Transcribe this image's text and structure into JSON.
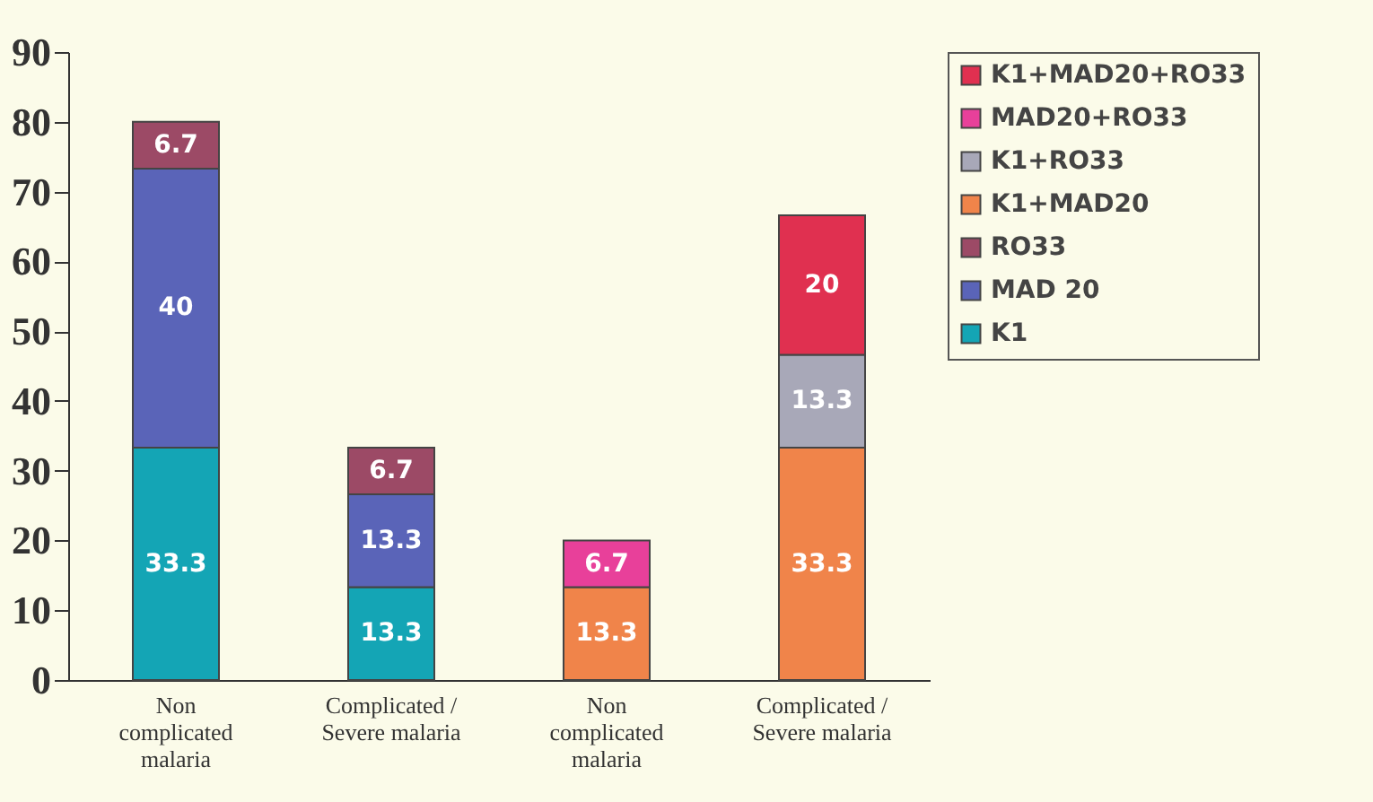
{
  "chart_data": {
    "type": "bar",
    "stacked": true,
    "data_labels": true,
    "legend": "right",
    "grid": false,
    "categories": [
      "Non complicated malaria",
      "Complicated / Severe malaria",
      "Non complicated malaria",
      "Complicated / Severe malaria"
    ],
    "ylim": [
      0,
      90
    ],
    "yticks": [
      0,
      10,
      20,
      30,
      40,
      50,
      60,
      70,
      80,
      90
    ],
    "series": [
      {
        "name": "K1",
        "color": "#14a5b5",
        "values": [
          33.3,
          13.3,
          null,
          null
        ]
      },
      {
        "name": "MAD 20",
        "color": "#5a64b8",
        "values": [
          40,
          13.3,
          null,
          null
        ]
      },
      {
        "name": "RO33",
        "color": "#9c4a66",
        "values": [
          6.7,
          6.7,
          null,
          null
        ]
      },
      {
        "name": "K1+MAD20",
        "color": "#f0844a",
        "values": [
          null,
          null,
          13.3,
          33.3
        ]
      },
      {
        "name": "K1+RO33",
        "color": "#a8a8b8",
        "values": [
          null,
          null,
          null,
          13.3
        ]
      },
      {
        "name": "MAD20+RO33",
        "color": "#e8409a",
        "values": [
          null,
          null,
          6.7,
          null
        ]
      },
      {
        "name": "K1+MAD20+RO33",
        "color": "#e03050",
        "values": [
          null,
          null,
          null,
          20
        ]
      }
    ]
  }
}
